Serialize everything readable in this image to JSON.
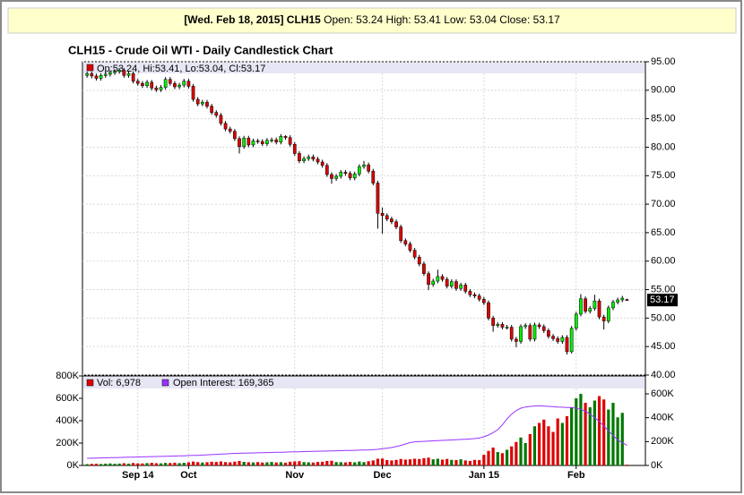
{
  "header": {
    "bold": "[Wed. Feb 18, 2015] CLH15",
    "quote": "Open: 53.24 High: 53.41 Low: 53.04 Close: 53.17"
  },
  "chart_data": {
    "type": "candlestick",
    "title": "CLH15 - Crude Oil WTI - Daily Candlestick Chart",
    "price_legend": "Op:53.24, Hi:53.41, Lo:53.04, Cl:53.17",
    "volume_legend": "Vol: 6,978",
    "oi_legend": "Open Interest: 169,365",
    "up_color": "#00ee00",
    "down_color": "#dd0000",
    "oi_color": "#9933ff",
    "grid": true,
    "xlim": [
      -1,
      121
    ],
    "xticks": [
      {
        "value": 11,
        "label": "Sep 14"
      },
      {
        "value": 22,
        "label": "Oct"
      },
      {
        "value": 45,
        "label": "Nov"
      },
      {
        "value": 64,
        "label": "Dec"
      },
      {
        "value": 86,
        "label": "Jan 15"
      },
      {
        "value": 106,
        "label": "Feb"
      }
    ],
    "ylim": [
      40,
      95
    ],
    "yticks": [
      {
        "value": 40,
        "label": "40.00"
      },
      {
        "value": 45,
        "label": "45.00"
      },
      {
        "value": 50,
        "label": "50.00"
      },
      {
        "value": 55,
        "label": "55.00"
      },
      {
        "value": 60,
        "label": "60.00"
      },
      {
        "value": 65,
        "label": "65.00"
      },
      {
        "value": 70,
        "label": "70.00"
      },
      {
        "value": 75,
        "label": "75.00"
      },
      {
        "value": 80,
        "label": "80.00"
      },
      {
        "value": 85,
        "label": "85.00"
      },
      {
        "value": 90,
        "label": "90.00"
      },
      {
        "value": 95,
        "label": "95.00"
      }
    ],
    "open": [
      92.6,
      92.9,
      92.5,
      92.1,
      92.6,
      92.8,
      93.1,
      93.3,
      93.5,
      92.6,
      92.9,
      91.6,
      91.2,
      90.8,
      91.4,
      90.4,
      90.1,
      90.5,
      91.9,
      91.2,
      90.6,
      90.9,
      91.6,
      90.7,
      88.4,
      87.6,
      87.9,
      87.2,
      86.1,
      85.6,
      84.2,
      83.2,
      82.8,
      81.5,
      80.1,
      81.6,
      80.4,
      81.1,
      81.0,
      80.6,
      81.2,
      81.3,
      80.9,
      81.9,
      81.7,
      80.5,
      78.9,
      77.6,
      78.0,
      78.3,
      77.9,
      77.4,
      76.8,
      75.2,
      74.5,
      74.9,
      75.6,
      75.4,
      74.6,
      75.3,
      76.6,
      76.9,
      75.8,
      73.7,
      68.4,
      68.0,
      67.4,
      66.9,
      66.0,
      63.6,
      63.0,
      61.9,
      60.7,
      59.5,
      57.8,
      55.9,
      56.5,
      57.3,
      56.8,
      55.6,
      56.4,
      55.2,
      55.8,
      54.7,
      54.1,
      53.9,
      53.3,
      52.7,
      50.0,
      48.7,
      48.9,
      48.4,
      48.4,
      46.3,
      45.9,
      48.5,
      48.7,
      46.3,
      48.8,
      48.5,
      47.8,
      46.8,
      46.4,
      45.9,
      46.6,
      44.1,
      48.2,
      50.7,
      53.4,
      51.2,
      51.7,
      53.0,
      50.2,
      49.5,
      51.8,
      52.8,
      53.2,
      53.24
    ],
    "high": [
      93.3,
      93.3,
      92.9,
      93.0,
      93.2,
      93.5,
      93.7,
      93.9,
      93.9,
      93.3,
      93.3,
      92.0,
      91.6,
      91.8,
      91.8,
      90.8,
      90.9,
      92.3,
      92.3,
      91.6,
      91.3,
      92.0,
      92.0,
      91.1,
      88.8,
      88.3,
      88.3,
      87.6,
      86.5,
      86.0,
      84.6,
      83.6,
      83.2,
      81.9,
      82.0,
      82.0,
      81.5,
      81.5,
      81.4,
      81.6,
      81.7,
      81.7,
      82.3,
      82.1,
      82.1,
      80.9,
      79.3,
      78.4,
      78.7,
      78.7,
      78.3,
      77.8,
      77.2,
      75.6,
      75.3,
      76.0,
      76.0,
      75.8,
      75.7,
      77.0,
      77.6,
      77.3,
      76.2,
      74.1,
      69.4,
      68.4,
      67.8,
      67.3,
      66.4,
      64.0,
      63.4,
      62.3,
      61.1,
      59.9,
      58.2,
      56.9,
      58.5,
      57.7,
      57.2,
      56.8,
      56.8,
      56.2,
      56.2,
      55.1,
      54.5,
      54.3,
      53.7,
      53.1,
      50.4,
      49.3,
      49.3,
      48.8,
      48.8,
      46.7,
      48.9,
      49.1,
      49.1,
      49.2,
      49.2,
      48.9,
      48.2,
      47.2,
      46.8,
      47.0,
      47.0,
      48.6,
      51.1,
      54.2,
      53.8,
      52.1,
      54.1,
      53.4,
      50.6,
      52.2,
      53.2,
      53.6,
      53.9,
      53.41
    ],
    "low": [
      92.2,
      92.1,
      91.7,
      91.7,
      92.2,
      92.4,
      92.7,
      92.9,
      92.2,
      92.2,
      91.2,
      90.8,
      90.4,
      90.4,
      90.0,
      89.7,
      89.7,
      90.1,
      90.8,
      90.2,
      90.2,
      90.5,
      90.3,
      88.0,
      87.2,
      87.2,
      86.8,
      85.7,
      85.2,
      83.8,
      82.8,
      82.4,
      81.1,
      78.9,
      79.7,
      80.0,
      80.0,
      80.6,
      80.2,
      80.2,
      80.8,
      80.5,
      80.5,
      81.3,
      80.1,
      78.5,
      77.2,
      77.2,
      77.6,
      77.5,
      77.0,
      76.4,
      74.8,
      73.6,
      74.1,
      74.5,
      75.0,
      74.2,
      74.2,
      74.9,
      76.2,
      75.4,
      73.3,
      65.7,
      64.8,
      67.0,
      66.5,
      65.6,
      63.2,
      62.6,
      61.5,
      60.3,
      59.1,
      57.4,
      54.9,
      55.5,
      56.1,
      56.4,
      55.2,
      55.2,
      54.8,
      54.8,
      54.3,
      53.7,
      53.5,
      52.9,
      52.3,
      49.6,
      47.6,
      48.3,
      48.0,
      48.0,
      45.9,
      44.9,
      45.5,
      48.1,
      45.9,
      45.9,
      48.1,
      47.4,
      46.4,
      46.0,
      45.5,
      45.5,
      43.6,
      43.8,
      47.8,
      50.3,
      50.8,
      50.8,
      51.3,
      49.8,
      48.0,
      49.1,
      51.4,
      52.4,
      52.8,
      53.04
    ],
    "close": [
      92.9,
      92.5,
      92.1,
      92.6,
      92.8,
      93.1,
      93.3,
      93.5,
      92.6,
      92.9,
      91.6,
      91.2,
      90.8,
      91.4,
      90.4,
      90.1,
      90.5,
      91.9,
      91.2,
      90.6,
      90.9,
      91.6,
      90.7,
      88.4,
      87.6,
      87.9,
      87.2,
      86.1,
      85.6,
      84.2,
      83.2,
      82.8,
      81.5,
      80.1,
      81.6,
      80.4,
      81.1,
      81.0,
      80.6,
      81.2,
      81.3,
      80.9,
      81.9,
      81.7,
      80.5,
      78.9,
      77.6,
      78.0,
      78.3,
      77.9,
      77.4,
      76.8,
      75.2,
      74.5,
      74.9,
      75.6,
      75.4,
      74.6,
      75.3,
      76.6,
      76.9,
      75.8,
      73.7,
      68.4,
      68.0,
      67.4,
      66.9,
      66.0,
      63.6,
      63.0,
      61.9,
      60.7,
      59.5,
      57.8,
      55.9,
      56.5,
      57.3,
      56.8,
      55.6,
      56.4,
      55.2,
      55.8,
      54.7,
      54.1,
      53.9,
      53.3,
      52.7,
      50.0,
      48.7,
      48.9,
      48.4,
      48.4,
      46.3,
      45.9,
      48.5,
      48.7,
      46.3,
      48.8,
      48.5,
      47.8,
      46.8,
      46.4,
      45.9,
      46.6,
      44.1,
      48.2,
      50.7,
      53.4,
      51.2,
      51.7,
      53.0,
      50.2,
      49.5,
      51.8,
      52.8,
      53.2,
      53.5,
      53.17
    ],
    "vlim": [
      0,
      800000
    ],
    "vticks": [
      {
        "value": 0,
        "label": "0K"
      },
      {
        "value": 200000,
        "label": "200K"
      },
      {
        "value": 400000,
        "label": "400K"
      },
      {
        "value": 600000,
        "label": "600K"
      },
      {
        "value": 800000,
        "label": "800K"
      }
    ],
    "volume": [
      12000,
      14000,
      15000,
      13000,
      16000,
      18000,
      15000,
      17000,
      20000,
      16000,
      22000,
      19000,
      18000,
      21000,
      24000,
      20000,
      19000,
      23000,
      22000,
      25000,
      21000,
      24000,
      28000,
      35000,
      30000,
      26000,
      29000,
      33000,
      31000,
      36000,
      30000,
      28000,
      34000,
      40000,
      32000,
      29000,
      27000,
      30000,
      26000,
      28000,
      31000,
      27000,
      29000,
      25000,
      33000,
      36000,
      38000,
      30000,
      28000,
      26000,
      31000,
      33000,
      40000,
      42000,
      30000,
      29000,
      27000,
      32000,
      28000,
      35000,
      30000,
      38000,
      45000,
      60000,
      62000,
      48000,
      45000,
      50000,
      58000,
      52000,
      55000,
      60000,
      58000,
      65000,
      70000,
      55000,
      60000,
      52000,
      58000,
      50000,
      48000,
      55000,
      45000,
      40000,
      50000,
      48000,
      95000,
      130000,
      160000,
      120000,
      110000,
      140000,
      170000,
      210000,
      250000,
      200000,
      280000,
      350000,
      380000,
      410000,
      350000,
      300000,
      420000,
      380000,
      440000,
      520000,
      600000,
      640000,
      560000,
      520000,
      580000,
      620000,
      590000,
      500000,
      560000,
      430000,
      470000,
      6978
    ],
    "y2lim": [
      0,
      750000
    ],
    "y2ticks": [
      {
        "value": 0,
        "label": "0K"
      },
      {
        "value": 200000,
        "label": "200K"
      },
      {
        "value": 400000,
        "label": "400K"
      },
      {
        "value": 600000,
        "label": "600K"
      }
    ],
    "open_interest": [
      60000,
      61000,
      62000,
      63000,
      64000,
      65000,
      66000,
      67000,
      68000,
      69000,
      70000,
      71000,
      72000,
      73000,
      74000,
      75000,
      76000,
      77000,
      78000,
      79000,
      80000,
      81000,
      83000,
      84000,
      85000,
      87000,
      89000,
      91000,
      93000,
      95000,
      97000,
      99000,
      101000,
      102000,
      103000,
      104000,
      105000,
      106000,
      107000,
      108000,
      109000,
      110000,
      111000,
      112000,
      113000,
      114000,
      115000,
      116000,
      117000,
      118000,
      119000,
      120000,
      121000,
      122000,
      123000,
      124000,
      125000,
      126000,
      127000,
      128000,
      129000,
      130000,
      132000,
      135000,
      140000,
      145000,
      150000,
      158000,
      168000,
      180000,
      192000,
      198000,
      200000,
      202000,
      204000,
      206000,
      208000,
      210000,
      212000,
      214000,
      216000,
      218000,
      220000,
      222000,
      225000,
      230000,
      240000,
      255000,
      275000,
      300000,
      340000,
      390000,
      430000,
      460000,
      480000,
      490000,
      495000,
      498000,
      500000,
      498000,
      495000,
      493000,
      490000,
      488000,
      486000,
      485000,
      480000,
      470000,
      455000,
      430000,
      400000,
      370000,
      330000,
      290000,
      250000,
      215000,
      190000,
      169365
    ]
  }
}
